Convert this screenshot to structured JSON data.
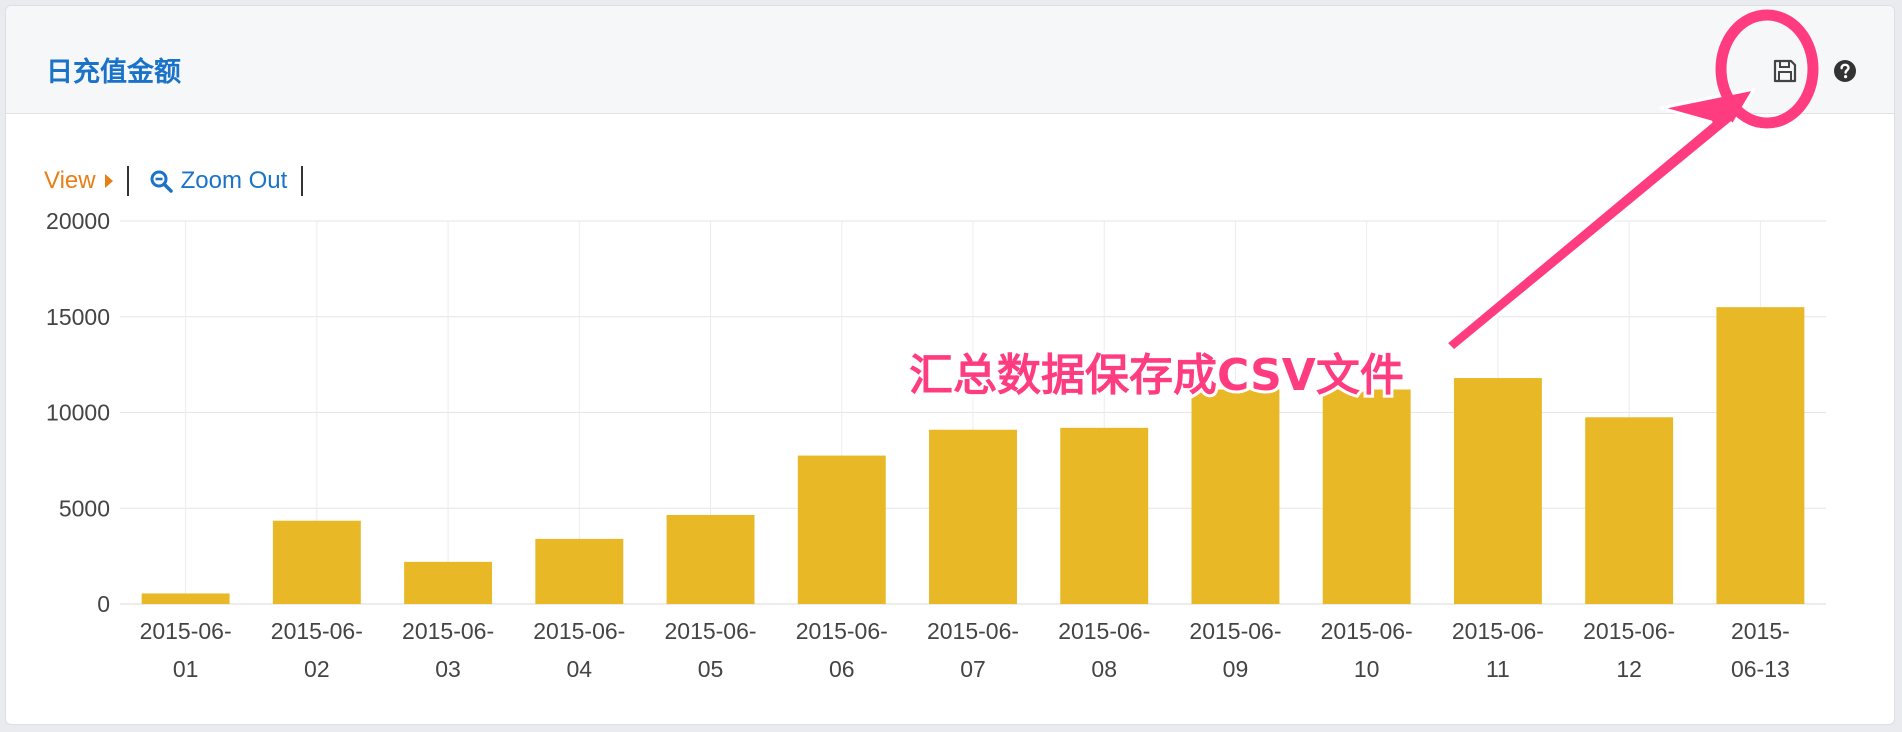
{
  "panel": {
    "title": "日充值金额",
    "icons": {
      "save": "floppy-disk-icon",
      "help": "question-circle-icon"
    }
  },
  "toolbar": {
    "view_label": "View",
    "zoom_out_label": "Zoom Out"
  },
  "annotation": {
    "text": "汇总数据保存成CSV文件",
    "color": "#ff3c7f"
  },
  "colors": {
    "bar": "#e9b827",
    "accent": "#1a73c8",
    "view": "#e87e16"
  },
  "chart_data": {
    "type": "bar",
    "categories": [
      "2015-06-01",
      "2015-06-02",
      "2015-06-03",
      "2015-06-04",
      "2015-06-05",
      "2015-06-06",
      "2015-06-07",
      "2015-06-08",
      "2015-06-09",
      "2015-06-10",
      "2015-06-11",
      "2015-06-12",
      "2015-06-13"
    ],
    "x_tick_lines": [
      [
        "2015-06-",
        "01"
      ],
      [
        "2015-06-",
        "02"
      ],
      [
        "2015-06-",
        "03"
      ],
      [
        "2015-06-",
        "04"
      ],
      [
        "2015-06-",
        "05"
      ],
      [
        "2015-06-",
        "06"
      ],
      [
        "2015-06-",
        "07"
      ],
      [
        "2015-06-",
        "08"
      ],
      [
        "2015-06-",
        "09"
      ],
      [
        "2015-06-",
        "10"
      ],
      [
        "2015-06-",
        "11"
      ],
      [
        "2015-06-",
        "12"
      ],
      [
        "2015-",
        "06-13"
      ]
    ],
    "values": [
      550,
      4350,
      2200,
      3400,
      4650,
      7750,
      9100,
      9200,
      11200,
      11200,
      11800,
      9750,
      15500
    ],
    "ylim": [
      0,
      20000
    ],
    "y_ticks": [
      0,
      5000,
      10000,
      15000,
      20000
    ],
    "grid": true,
    "title": "",
    "xlabel": "",
    "ylabel": ""
  }
}
